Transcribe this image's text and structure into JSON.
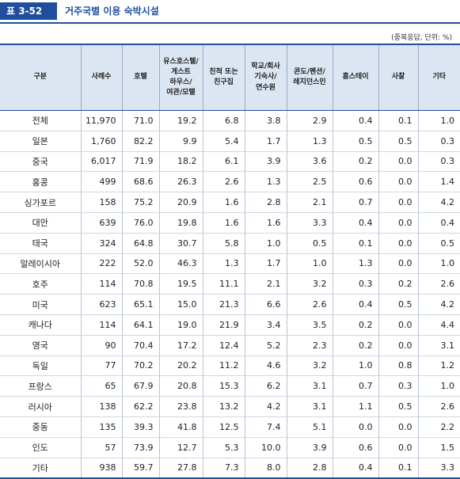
{
  "header": {
    "label": "표 3-52",
    "title": "거주국별 이용 숙박시설"
  },
  "unit_note": "(중복응답, 단위: %)",
  "columns": [
    "구분",
    "사례수",
    "호텔",
    "유스호스텔/\n게스트\n하우스/\n여관/모텔",
    "친척 또는\n친구집",
    "학교/회사\n기숙사/\n연수원",
    "콘도/펜션/\n레지던스인",
    "홈스테이",
    "사찰",
    "기타"
  ],
  "rows": [
    [
      "전체",
      "11,970",
      "71.0",
      "19.2",
      "6.8",
      "3.8",
      "2.9",
      "0.4",
      "0.1",
      "1.0"
    ],
    [
      "일본",
      "1,760",
      "82.2",
      "9.9",
      "5.4",
      "1.7",
      "1.3",
      "0.5",
      "0.5",
      "0.3"
    ],
    [
      "중국",
      "6,017",
      "71.9",
      "18.2",
      "6.1",
      "3.9",
      "3.6",
      "0.2",
      "0.0",
      "0.3"
    ],
    [
      "홍콩",
      "499",
      "68.6",
      "26.3",
      "2.6",
      "1.3",
      "2.5",
      "0.6",
      "0.0",
      "1.4"
    ],
    [
      "싱가포르",
      "158",
      "75.2",
      "20.9",
      "1.6",
      "2.8",
      "2.1",
      "0.7",
      "0.0",
      "4.2"
    ],
    [
      "대만",
      "639",
      "76.0",
      "19.8",
      "1.6",
      "1.6",
      "3.3",
      "0.4",
      "0.0",
      "0.4"
    ],
    [
      "태국",
      "324",
      "64.8",
      "30.7",
      "5.8",
      "1.0",
      "0.5",
      "0.1",
      "0.0",
      "0.5"
    ],
    [
      "말레이시아",
      "222",
      "52.0",
      "46.3",
      "1.3",
      "1.7",
      "1.0",
      "1.3",
      "0.0",
      "1.0"
    ],
    [
      "호주",
      "114",
      "70.8",
      "19.5",
      "11.1",
      "2.1",
      "3.2",
      "0.3",
      "0.2",
      "2.6"
    ],
    [
      "미국",
      "623",
      "65.1",
      "15.0",
      "21.3",
      "6.6",
      "2.6",
      "0.4",
      "0.5",
      "4.2"
    ],
    [
      "캐나다",
      "114",
      "64.1",
      "19.0",
      "21.9",
      "3.4",
      "3.5",
      "0.2",
      "0.0",
      "4.4"
    ],
    [
      "영국",
      "90",
      "70.4",
      "17.2",
      "12.4",
      "5.2",
      "2.3",
      "0.2",
      "0.0",
      "3.1"
    ],
    [
      "독일",
      "77",
      "70.2",
      "20.2",
      "11.2",
      "4.6",
      "3.2",
      "1.0",
      "0.8",
      "1.2"
    ],
    [
      "프랑스",
      "65",
      "67.9",
      "20.8",
      "15.3",
      "6.2",
      "3.1",
      "0.7",
      "0.3",
      "1.0"
    ],
    [
      "러시아",
      "138",
      "62.2",
      "23.8",
      "13.2",
      "4.2",
      "3.1",
      "1.1",
      "0.5",
      "2.6"
    ],
    [
      "중동",
      "135",
      "39.3",
      "41.8",
      "12.5",
      "7.4",
      "5.1",
      "0.0",
      "0.0",
      "2.2"
    ],
    [
      "인도",
      "57",
      "73.9",
      "12.7",
      "5.3",
      "10.0",
      "3.9",
      "0.6",
      "0.0",
      "1.5"
    ],
    [
      "기타",
      "938",
      "59.7",
      "27.8",
      "7.3",
      "8.0",
      "2.8",
      "0.4",
      "0.1",
      "3.3"
    ]
  ],
  "colors": {
    "accent": "#1f4e9c",
    "header_bg": "#dce6f2"
  }
}
